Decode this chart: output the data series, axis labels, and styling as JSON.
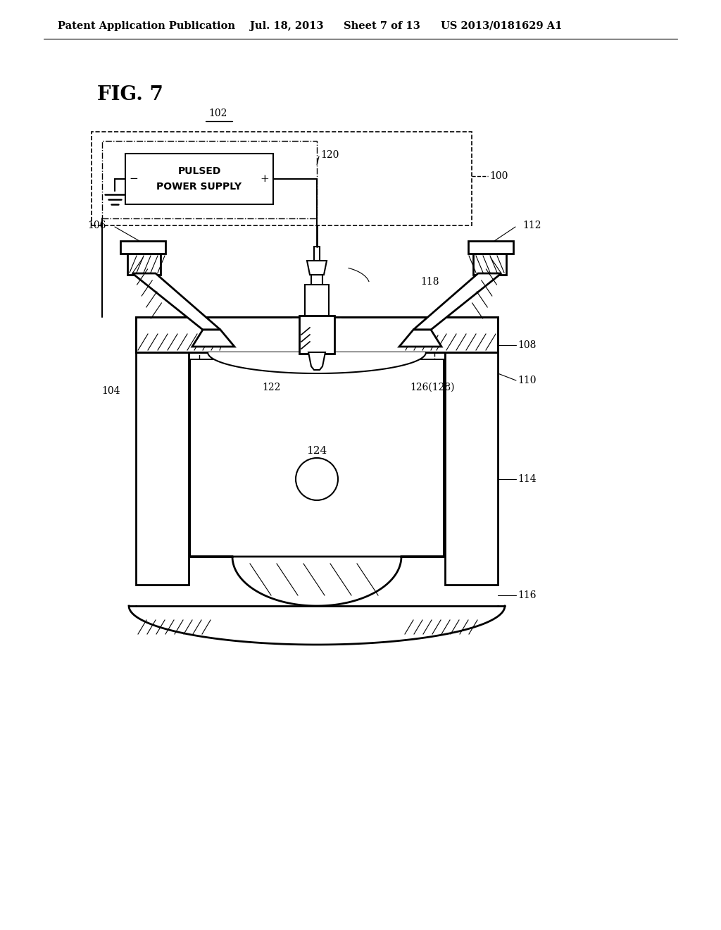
{
  "bg_color": "#ffffff",
  "line_color": "#000000",
  "header_text": "Patent Application Publication",
  "header_date": "Jul. 18, 2013",
  "header_sheet": "Sheet 7 of 13",
  "header_patent": "US 2013/0181629 A1",
  "fig_label": "FIG. 7",
  "label_102": "102",
  "label_100": "100",
  "label_120": "120",
  "label_118": "118",
  "label_122": "122",
  "label_124": "124",
  "label_126": "126(128)",
  "label_106": "106",
  "label_104": "104",
  "label_108": "108",
  "label_110": "110",
  "label_112": "112",
  "label_114": "114",
  "label_116": "116",
  "pps_text_line1": "PULSED",
  "pps_text_line2": "POWER SUPPLY"
}
